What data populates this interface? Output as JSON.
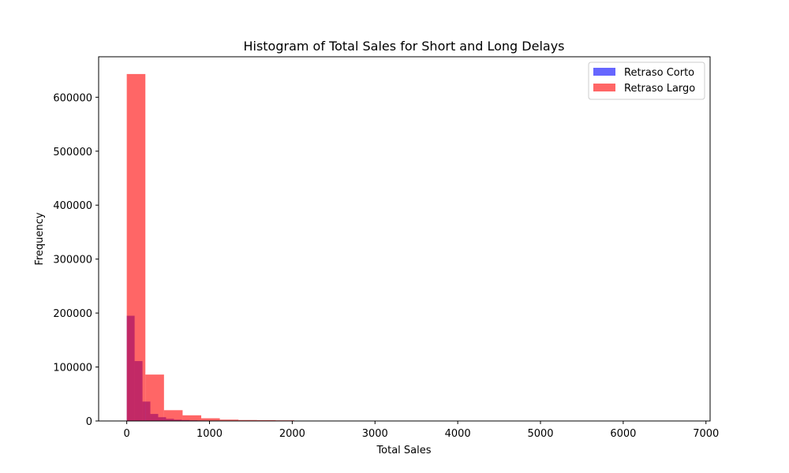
{
  "chart_data": {
    "type": "bar",
    "title": "Histogram of Total Sales for Short and Long Delays",
    "xlabel": "Total Sales",
    "ylabel": "Frequency",
    "xlim": [
      -340,
      7050
    ],
    "ylim": [
      0,
      675000
    ],
    "xticks": [
      0,
      1000,
      2000,
      3000,
      4000,
      5000,
      6000,
      7000
    ],
    "yticks": [
      0,
      100000,
      200000,
      300000,
      400000,
      500000,
      600000
    ],
    "grid": false,
    "legend_position": "top-right",
    "series": [
      {
        "name": "Retraso Corto",
        "color": "#0000ff",
        "alpha": 0.6,
        "bins": [
          {
            "x0": 0,
            "x1": 95,
            "count": 195000
          },
          {
            "x0": 95,
            "x1": 190,
            "count": 111000
          },
          {
            "x0": 190,
            "x1": 285,
            "count": 36000
          },
          {
            "x0": 285,
            "x1": 380,
            "count": 13000
          },
          {
            "x0": 380,
            "x1": 475,
            "count": 7000
          },
          {
            "x0": 475,
            "x1": 570,
            "count": 4000
          },
          {
            "x0": 570,
            "x1": 665,
            "count": 2500
          },
          {
            "x0": 665,
            "x1": 760,
            "count": 1800
          },
          {
            "x0": 760,
            "x1": 855,
            "count": 1200
          },
          {
            "x0": 855,
            "x1": 950,
            "count": 900
          },
          {
            "x0": 950,
            "x1": 1045,
            "count": 700
          },
          {
            "x0": 1045,
            "x1": 1140,
            "count": 500
          },
          {
            "x0": 1140,
            "x1": 1235,
            "count": 400
          },
          {
            "x0": 1235,
            "x1": 1330,
            "count": 300
          },
          {
            "x0": 1330,
            "x1": 1425,
            "count": 250
          },
          {
            "x0": 1425,
            "x1": 1520,
            "count": 200
          },
          {
            "x0": 1520,
            "x1": 1615,
            "count": 180
          },
          {
            "x0": 1615,
            "x1": 1710,
            "count": 150
          },
          {
            "x0": 1710,
            "x1": 1805,
            "count": 120
          },
          {
            "x0": 1805,
            "x1": 1900,
            "count": 100
          },
          {
            "x0": 1900,
            "x1": 1995,
            "count": 80
          },
          {
            "x0": 1995,
            "x1": 2090,
            "count": 60
          }
        ]
      },
      {
        "name": "Retraso Largo",
        "color": "#ff0000",
        "alpha": 0.6,
        "bins": [
          {
            "x0": 0,
            "x1": 225,
            "count": 643000
          },
          {
            "x0": 225,
            "x1": 450,
            "count": 86000
          },
          {
            "x0": 450,
            "x1": 675,
            "count": 20000
          },
          {
            "x0": 675,
            "x1": 900,
            "count": 10500
          },
          {
            "x0": 900,
            "x1": 1125,
            "count": 5000
          },
          {
            "x0": 1125,
            "x1": 1350,
            "count": 2500
          },
          {
            "x0": 1350,
            "x1": 1575,
            "count": 1800
          },
          {
            "x0": 1575,
            "x1": 1800,
            "count": 1500
          },
          {
            "x0": 1800,
            "x1": 2025,
            "count": 1200
          },
          {
            "x0": 2025,
            "x1": 2250,
            "count": 400
          },
          {
            "x0": 2250,
            "x1": 2475,
            "count": 300
          },
          {
            "x0": 2475,
            "x1": 2700,
            "count": 250
          },
          {
            "x0": 2700,
            "x1": 2925,
            "count": 200
          },
          {
            "x0": 2925,
            "x1": 3150,
            "count": 150
          },
          {
            "x0": 3150,
            "x1": 3375,
            "count": 120
          },
          {
            "x0": 3375,
            "x1": 3600,
            "count": 100
          },
          {
            "x0": 3600,
            "x1": 3825,
            "count": 80
          },
          {
            "x0": 3825,
            "x1": 4050,
            "count": 60
          },
          {
            "x0": 4050,
            "x1": 4275,
            "count": 50
          },
          {
            "x0": 4275,
            "x1": 4500,
            "count": 40
          },
          {
            "x0": 4500,
            "x1": 4725,
            "count": 30
          },
          {
            "x0": 4725,
            "x1": 4950,
            "count": 30
          },
          {
            "x0": 4950,
            "x1": 5175,
            "count": 25
          },
          {
            "x0": 5175,
            "x1": 5400,
            "count": 20
          },
          {
            "x0": 5400,
            "x1": 5625,
            "count": 20
          },
          {
            "x0": 5625,
            "x1": 5850,
            "count": 15
          },
          {
            "x0": 5850,
            "x1": 6075,
            "count": 15
          },
          {
            "x0": 6075,
            "x1": 6300,
            "count": 10
          },
          {
            "x0": 6300,
            "x1": 6525,
            "count": 10
          },
          {
            "x0": 6525,
            "x1": 6750,
            "count": 10
          }
        ]
      }
    ]
  }
}
